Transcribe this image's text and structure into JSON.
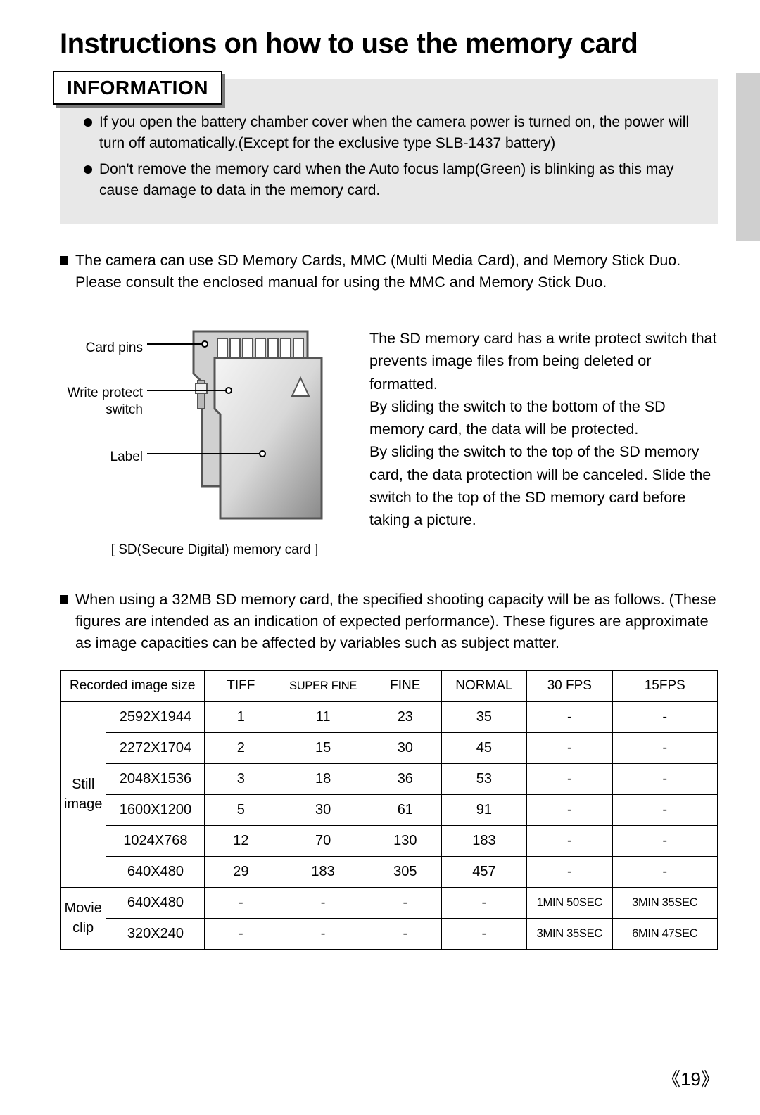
{
  "title": "Instructions on how to use the memory card",
  "info": {
    "header": "INFORMATION",
    "bullets": [
      "If you open the battery chamber cover when the camera power is turned on, the power will turn off automatically.(Except for the exclusive type SLB-1437 battery)",
      "Don't remove the memory card when the Auto focus lamp(Green) is blinking as this may cause damage to data in the memory card."
    ]
  },
  "body_bullet1": "The camera can use SD Memory Cards, MMC (Multi Media Card), and Memory Stick Duo. Please consult the enclosed manual for using the MMC and Memory Stick Duo.",
  "diagram": {
    "labels": {
      "pins": "Card pins",
      "switch": "Write protect switch",
      "label": "Label"
    },
    "caption": "[ SD(Secure Digital) memory card ]",
    "description": "The SD memory card has a write protect switch that prevents image files from being deleted or formatted.\nBy sliding the switch to the bottom of the SD memory card, the data will be protected.\nBy sliding the switch to the top of the SD memory card, the data protection will be canceled. Slide the switch to the top of the SD memory card before taking a picture."
  },
  "body_bullet2": "When using a 32MB SD memory card, the specified shooting capacity will be as follows. (These figures are intended as an indication of expected performance). These figures are approximate as image capacities can be affected by variables such as subject matter.",
  "table": {
    "header_span": "Recorded image size",
    "columns": [
      "TIFF",
      "SUPER FINE",
      "FINE",
      "NORMAL",
      "30 FPS",
      "15FPS"
    ],
    "col_widths_pct": [
      7,
      15,
      11,
      14,
      11,
      13,
      13,
      16
    ],
    "groups": [
      {
        "label": "Still image",
        "rows": [
          {
            "size": "2592X1944",
            "cells": [
              "1",
              "11",
              "23",
              "35",
              "-",
              "-"
            ]
          },
          {
            "size": "2272X1704",
            "cells": [
              "2",
              "15",
              "30",
              "45",
              "-",
              "-"
            ]
          },
          {
            "size": "2048X1536",
            "cells": [
              "3",
              "18",
              "36",
              "53",
              "-",
              "-"
            ]
          },
          {
            "size": "1600X1200",
            "cells": [
              "5",
              "30",
              "61",
              "91",
              "-",
              "-"
            ]
          },
          {
            "size": "1024X768",
            "cells": [
              "12",
              "70",
              "130",
              "183",
              "-",
              "-"
            ]
          },
          {
            "size": "640X480",
            "cells": [
              "29",
              "183",
              "305",
              "457",
              "-",
              "-"
            ]
          }
        ]
      },
      {
        "label": "Movie clip",
        "rows": [
          {
            "size": "640X480",
            "cells": [
              "-",
              "-",
              "-",
              "-",
              "1MIN 50SEC",
              "3MIN 35SEC"
            ]
          },
          {
            "size": "320X240",
            "cells": [
              "-",
              "-",
              "-",
              "-",
              "3MIN 35SEC",
              "6MIN 47SEC"
            ]
          }
        ]
      }
    ]
  },
  "page_number": "19",
  "colors": {
    "info_bg": "#e8e8e8",
    "tab_bg": "#cfcfcf",
    "card_outline": "#555555",
    "card_front_light": "#f2f2f2",
    "card_front_dark": "#8a8a8a"
  }
}
